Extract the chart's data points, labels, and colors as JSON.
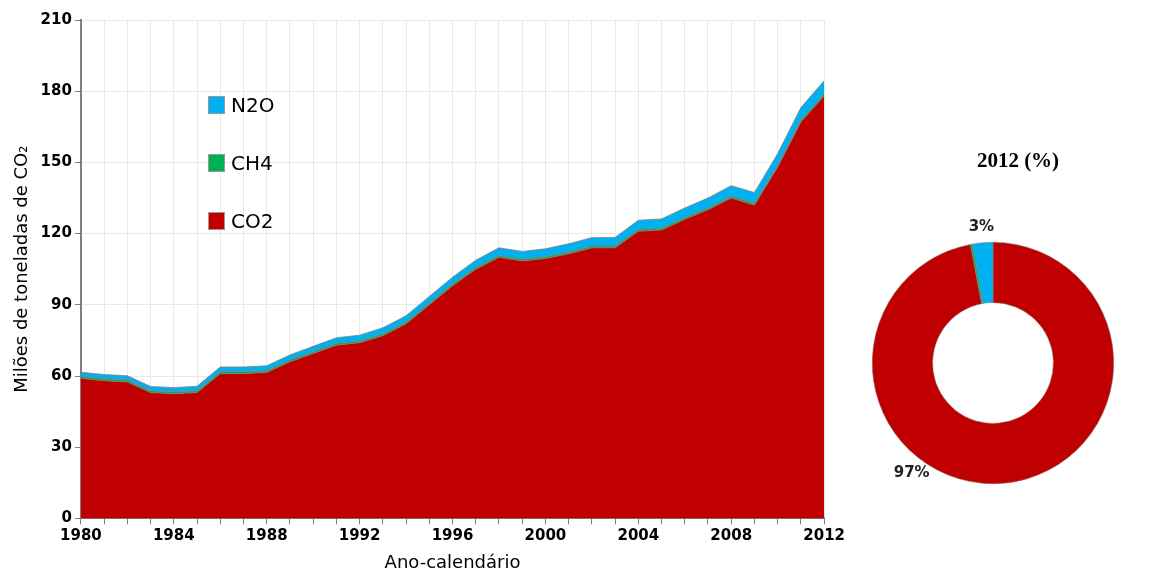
{
  "chart_data": [
    {
      "type": "area",
      "stacked": true,
      "xlabel": "Ano-calendário",
      "ylabel": "Milões de toneladas de CO₂",
      "x": [
        1980,
        1981,
        1982,
        1983,
        1984,
        1985,
        1986,
        1987,
        1988,
        1989,
        1990,
        1991,
        1992,
        1993,
        1994,
        1995,
        1996,
        1997,
        1998,
        1999,
        2000,
        2001,
        2002,
        2003,
        2004,
        2005,
        2006,
        2007,
        2008,
        2009,
        2010,
        2011,
        2012
      ],
      "series": [
        {
          "name": "CO2",
          "color": "#c00000",
          "values": [
            59,
            58,
            57.5,
            53,
            52.5,
            53,
            61,
            61,
            61.5,
            66,
            69.5,
            73,
            74,
            77,
            82,
            90,
            98,
            105,
            110,
            108.5,
            109.5,
            111.5,
            114,
            114,
            121,
            121.5,
            126,
            130,
            135,
            132,
            148,
            167,
            178
          ]
        },
        {
          "name": "CH4",
          "color": "#00b050",
          "values": [
            0.8,
            0.8,
            0.8,
            0.8,
            0.8,
            0.8,
            0.8,
            0.8,
            0.8,
            0.8,
            0.8,
            0.8,
            0.8,
            0.8,
            0.8,
            0.8,
            0.8,
            0.8,
            0.8,
            0.8,
            0.8,
            0.8,
            0.8,
            0.8,
            0.8,
            0.8,
            0.8,
            0.8,
            0.8,
            0.8,
            0.9,
            0.9,
            0.9
          ]
        },
        {
          "name": "N2O",
          "color": "#00b0f0",
          "values": [
            1.8,
            1.8,
            1.8,
            1.8,
            1.8,
            1.9,
            2,
            2,
            2,
            2.1,
            2.2,
            2.3,
            2.4,
            2.5,
            2.6,
            2.7,
            2.8,
            3,
            3.2,
            3.2,
            3.3,
            3.4,
            3.5,
            3.6,
            3.8,
            3.9,
            4,
            4.2,
            4.4,
            4.5,
            4.8,
            5.2,
            5.5
          ]
        }
      ],
      "xlim": [
        1980,
        2012
      ],
      "xticks": [
        1980,
        {
          "value": 1981,
          "label": null
        },
        {
          "value": 1982,
          "label": null
        },
        {
          "value": 1983,
          "label": null
        },
        1984,
        {
          "value": 1985,
          "label": null
        },
        {
          "value": 1986,
          "label": null
        },
        {
          "value": 1987,
          "label": null
        },
        1988,
        {
          "value": 1989,
          "label": null
        },
        {
          "value": 1990,
          "label": null
        },
        {
          "value": 1991,
          "label": null
        },
        1992,
        {
          "value": 1993,
          "label": null
        },
        {
          "value": 1994,
          "label": null
        },
        {
          "value": 1995,
          "label": null
        },
        1996,
        {
          "value": 1997,
          "label": null
        },
        {
          "value": 1998,
          "label": null
        },
        {
          "value": 1999,
          "label": null
        },
        2000,
        {
          "value": 2001,
          "label": null
        },
        {
          "value": 2002,
          "label": null
        },
        {
          "value": 2003,
          "label": null
        },
        2004,
        {
          "value": 2005,
          "label": null
        },
        {
          "value": 2006,
          "label": null
        },
        {
          "value": 2007,
          "label": null
        },
        2008,
        {
          "value": 2009,
          "label": null
        },
        {
          "value": 2010,
          "label": null
        },
        {
          "value": 2011,
          "label": null
        },
        2012
      ],
      "ylim": [
        0,
        210
      ],
      "yticks": [
        0,
        30,
        60,
        90,
        120,
        150,
        180,
        210
      ],
      "grid": true,
      "legend": "top left"
    },
    {
      "type": "donut",
      "title": "2012 (%)",
      "categories": [
        null,
        null,
        null
      ],
      "values": [
        97,
        0.3,
        2.7
      ],
      "colors": [
        "#c00000",
        "#00b050",
        "#00b0f0"
      ],
      "value_labels": [
        "97%",
        null,
        "3%"
      ],
      "legend": false
    }
  ]
}
